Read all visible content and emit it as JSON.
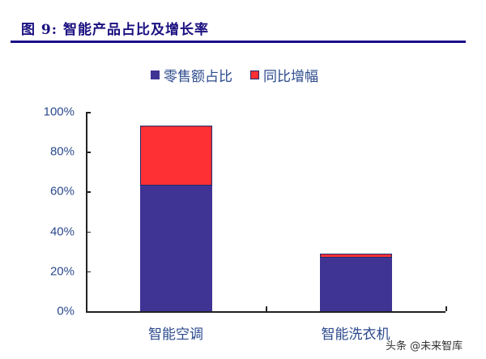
{
  "header": {
    "title": "图 9: 智能产品占比及增长率"
  },
  "legend": [
    {
      "label": "零售额占比",
      "color": "#3f3494"
    },
    {
      "label": "同比增幅",
      "color": "#fe3033"
    }
  ],
  "yaxis": {
    "ticks": [
      "0%",
      "20%",
      "40%",
      "60%",
      "80%",
      "100%"
    ]
  },
  "xaxis": {
    "categories": [
      "智能空调",
      "智能洗衣机"
    ]
  },
  "watermark": "头条 @未来智库",
  "chart_data": {
    "type": "bar",
    "stacked": true,
    "title": "图 9: 智能产品占比及增长率",
    "categories": [
      "智能空调",
      "智能洗衣机"
    ],
    "series": [
      {
        "name": "零售额占比",
        "values": [
          63,
          27
        ],
        "color": "#3f3494"
      },
      {
        "name": "同比增幅",
        "values": [
          30,
          2
        ],
        "color": "#fe3033"
      }
    ],
    "xlabel": "",
    "ylabel": "",
    "ylim": [
      0,
      100
    ],
    "yticks": [
      "0%",
      "20%",
      "40%",
      "60%",
      "80%",
      "100%"
    ],
    "grid": false,
    "legend_position": "top"
  }
}
